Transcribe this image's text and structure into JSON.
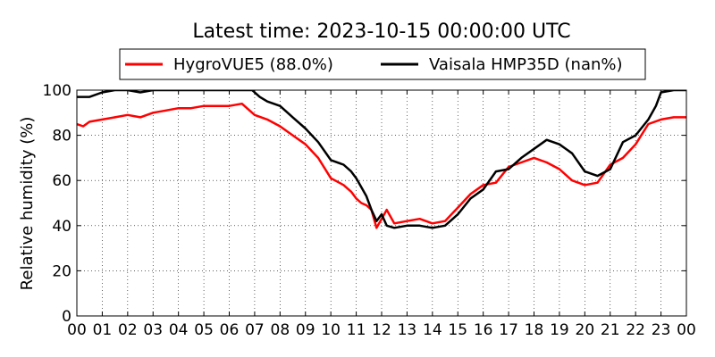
{
  "chart_data": {
    "type": "line",
    "title": "Latest time: 2023-10-15 00:00:00 UTC",
    "xlabel": "",
    "ylabel": "Relative humidity (%)",
    "xlim": [
      0,
      24
    ],
    "ylim": [
      0,
      100
    ],
    "x_ticks": [
      "00",
      "01",
      "02",
      "03",
      "04",
      "05",
      "06",
      "07",
      "08",
      "09",
      "10",
      "11",
      "12",
      "13",
      "14",
      "15",
      "16",
      "17",
      "18",
      "19",
      "20",
      "21",
      "22",
      "23",
      "00"
    ],
    "y_ticks": [
      0,
      20,
      40,
      60,
      80,
      100
    ],
    "grid": true,
    "legend_position": "top-center",
    "series": [
      {
        "name": "HygroVUE5 (88.0%)",
        "color": "#ff0000",
        "x": [
          0,
          0.25,
          0.5,
          1,
          1.5,
          2,
          2.5,
          3,
          3.5,
          4,
          4.5,
          5,
          5.5,
          6,
          6.5,
          7,
          7.5,
          8,
          8.5,
          9,
          9.5,
          10,
          10.5,
          10.8,
          11,
          11.2,
          11.4,
          11.6,
          11.8,
          12,
          12.2,
          12.5,
          13,
          13.5,
          14,
          14.5,
          15,
          15.5,
          16,
          16.5,
          17,
          17.5,
          18,
          18.5,
          19,
          19.5,
          20,
          20.5,
          21,
          21.5,
          22,
          22.5,
          23,
          23.5,
          24
        ],
        "y": [
          85,
          84,
          86,
          87,
          88,
          89,
          88,
          90,
          91,
          92,
          92,
          93,
          93,
          93,
          94,
          89,
          87,
          84,
          80,
          76,
          70,
          61,
          58,
          55,
          52,
          50,
          49,
          47,
          39,
          43,
          47,
          41,
          42,
          43,
          41,
          42,
          48,
          54,
          58,
          59,
          66,
          68,
          70,
          68,
          65,
          60,
          58,
          59,
          67,
          70,
          76,
          85,
          87,
          88,
          88
        ]
      },
      {
        "name": "Vaisala HMP35D (nan%)",
        "color": "#000000",
        "x": [
          0,
          0.5,
          1,
          1.5,
          2,
          2.5,
          3,
          4,
          5,
          6,
          6.9,
          7.2,
          7.5,
          8,
          8.5,
          9,
          9.5,
          10,
          10.5,
          10.8,
          11,
          11.2,
          11.4,
          11.6,
          11.8,
          12,
          12.2,
          12.5,
          13,
          13.5,
          14,
          14.5,
          15,
          15.5,
          16,
          16.5,
          17,
          17.5,
          18,
          18.5,
          19,
          19.5,
          20,
          20.5,
          21,
          21.5,
          22,
          22.5,
          22.8,
          23,
          23.5,
          24
        ],
        "y": [
          97,
          97,
          99,
          100,
          100,
          99,
          100,
          100,
          100,
          100,
          100,
          97,
          95,
          93,
          88,
          83,
          77,
          69,
          67,
          64,
          61,
          57,
          53,
          47,
          42,
          45,
          40,
          39,
          40,
          40,
          39,
          40,
          45,
          52,
          56,
          64,
          65,
          70,
          74,
          78,
          76,
          72,
          64,
          62,
          65,
          77,
          80,
          87,
          93,
          99,
          100,
          100
        ]
      }
    ]
  }
}
